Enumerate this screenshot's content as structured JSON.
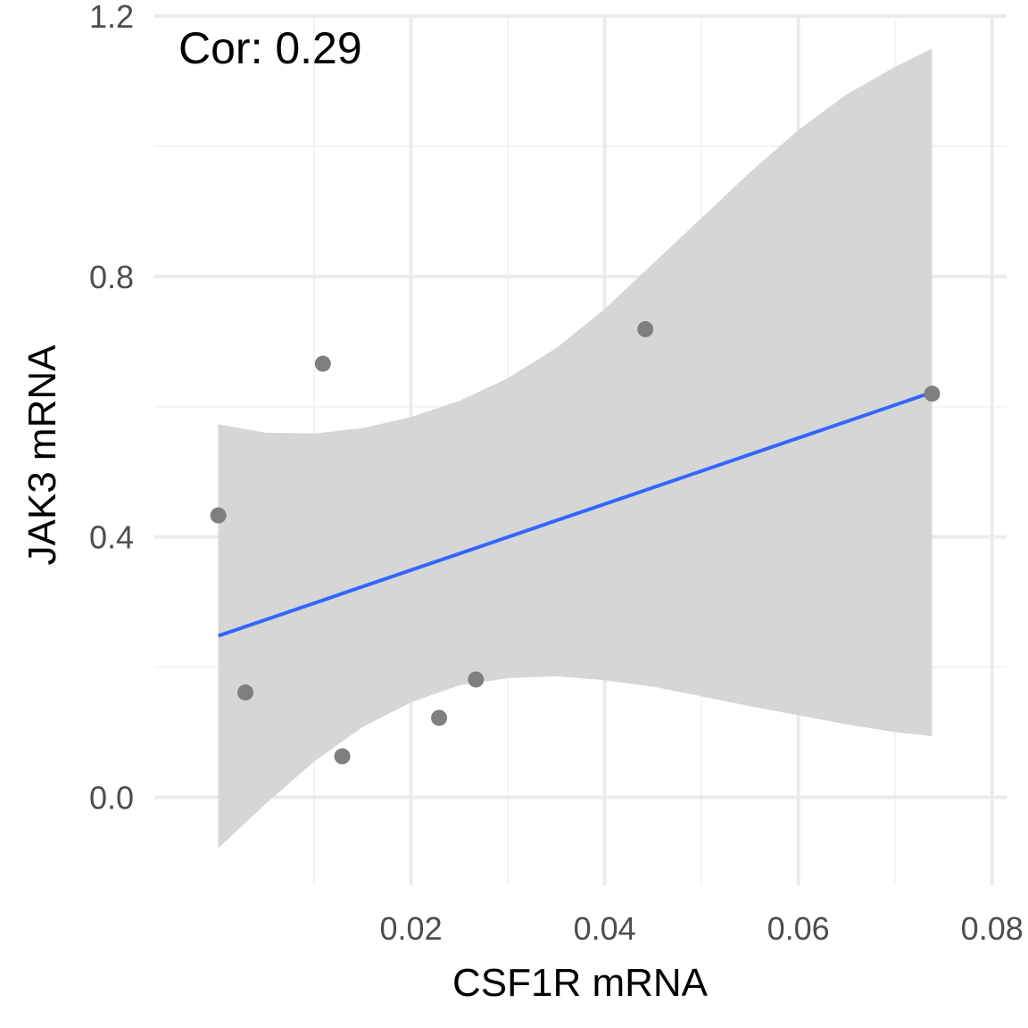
{
  "chart_data": {
    "type": "scatter",
    "xlabel": "CSF1R mRNA",
    "ylabel": "JAK3 mRNA",
    "annotation": "Cor: 0.29",
    "xlim": [
      -0.0065,
      0.0815
    ],
    "ylim": [
      -0.135,
      1.2
    ],
    "x_ticks": [
      0.02,
      0.04,
      0.06,
      0.08
    ],
    "x_tick_labels": [
      "0.02",
      "0.04",
      "0.06",
      "0.08"
    ],
    "x_minor_ticks": [
      0.01,
      0.03,
      0.05,
      0.07
    ],
    "y_ticks": [
      0.0,
      0.4,
      0.8,
      1.2
    ],
    "y_tick_labels": [
      "0.0",
      "0.4",
      "0.8",
      "1.2"
    ],
    "y_minor_ticks": [
      0.2,
      0.6,
      1.0
    ],
    "grid": true,
    "points": [
      {
        "x": 0.0001,
        "y": 0.433
      },
      {
        "x": 0.0029,
        "y": 0.161
      },
      {
        "x": 0.0109,
        "y": 0.666
      },
      {
        "x": 0.0129,
        "y": 0.063
      },
      {
        "x": 0.0229,
        "y": 0.122
      },
      {
        "x": 0.0267,
        "y": 0.181
      },
      {
        "x": 0.0442,
        "y": 0.719
      },
      {
        "x": 0.0738,
        "y": 0.62
      }
    ],
    "trend_line": {
      "x": [
        0.0001,
        0.0738
      ],
      "y": [
        0.248,
        0.622
      ]
    },
    "confidence_band": [
      {
        "x": 0.0001,
        "lo": -0.078,
        "hi": 0.573
      },
      {
        "x": 0.005,
        "lo": -0.01,
        "hi": 0.56
      },
      {
        "x": 0.01,
        "lo": 0.055,
        "hi": 0.559
      },
      {
        "x": 0.015,
        "lo": 0.108,
        "hi": 0.567
      },
      {
        "x": 0.02,
        "lo": 0.146,
        "hi": 0.584
      },
      {
        "x": 0.025,
        "lo": 0.172,
        "hi": 0.609
      },
      {
        "x": 0.03,
        "lo": 0.183,
        "hi": 0.644
      },
      {
        "x": 0.035,
        "lo": 0.186,
        "hi": 0.69
      },
      {
        "x": 0.04,
        "lo": 0.18,
        "hi": 0.75
      },
      {
        "x": 0.045,
        "lo": 0.17,
        "hi": 0.82
      },
      {
        "x": 0.05,
        "lo": 0.155,
        "hi": 0.89
      },
      {
        "x": 0.055,
        "lo": 0.14,
        "hi": 0.96
      },
      {
        "x": 0.06,
        "lo": 0.126,
        "hi": 1.025
      },
      {
        "x": 0.065,
        "lo": 0.112,
        "hi": 1.08
      },
      {
        "x": 0.07,
        "lo": 0.1,
        "hi": 1.122
      },
      {
        "x": 0.0738,
        "lo": 0.094,
        "hi": 1.15
      }
    ],
    "colors": {
      "points": "#7f7f7f",
      "trend_line": "#3366ff",
      "confidence_band": "#d4d4d4",
      "grid_major": "#ebebeb",
      "grid_minor": "#f3f3f3"
    }
  }
}
